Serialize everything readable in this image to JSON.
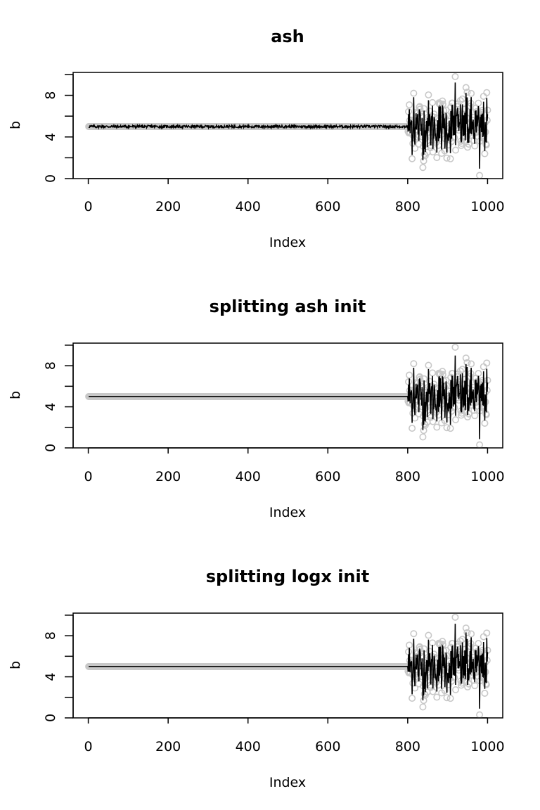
{
  "chart_data": [
    {
      "type": "scatter",
      "title": "ash",
      "xlabel": "Index",
      "ylabel": "b",
      "xlim": [
        -38,
        1038
      ],
      "ylim": [
        0,
        10.2
      ],
      "xticks": [
        "0",
        "200",
        "400",
        "600",
        "800",
        "1000"
      ],
      "yticks": [
        "0",
        "4",
        "8"
      ],
      "grid": false,
      "legend": "none",
      "points_color": "#c8c8c8",
      "line_color": "#000000",
      "n_points": 1000,
      "signal_region": [
        801,
        1000
      ],
      "baseline_b": 5,
      "fit_jitter_before_signal": 0.12,
      "series": [
        {
          "description_points": "b_true: 5 for index 1-800, noisy 0.3-9.8 for index 801-1000"
        },
        {
          "description_line": "posterior mean estimate"
        }
      ]
    },
    {
      "type": "scatter",
      "title": "splitting ash init",
      "xlabel": "Index",
      "ylabel": "b",
      "xlim": [
        -38,
        1038
      ],
      "ylim": [
        0,
        10.2
      ],
      "xticks": [
        "0",
        "200",
        "400",
        "600",
        "800",
        "1000"
      ],
      "yticks": [
        "0",
        "4",
        "8"
      ],
      "grid": false,
      "legend": "none",
      "points_color": "#c8c8c8",
      "line_color": "#000000",
      "n_points": 1000,
      "signal_region": [
        801,
        1000
      ],
      "baseline_b": 5,
      "fit_jitter_before_signal": 0.0
    },
    {
      "type": "scatter",
      "title": "splitting logx init",
      "xlabel": "Index",
      "ylabel": "b",
      "xlim": [
        -38,
        1038
      ],
      "ylim": [
        0,
        10.2
      ],
      "xticks": [
        "0",
        "200",
        "400",
        "600",
        "800",
        "1000"
      ],
      "yticks": [
        "0",
        "4",
        "8"
      ],
      "grid": false,
      "legend": "none",
      "points_color": "#c8c8c8",
      "line_color": "#000000",
      "n_points": 1000,
      "signal_region": [
        801,
        1000
      ],
      "baseline_b": 5,
      "fit_jitter_before_signal": 0.0
    }
  ]
}
